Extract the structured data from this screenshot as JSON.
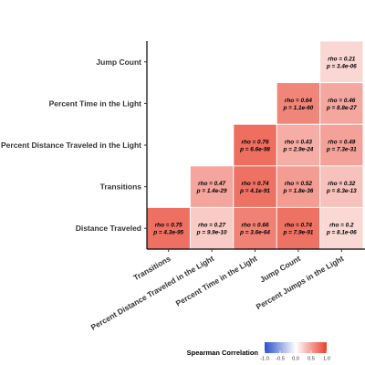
{
  "chart_data": {
    "type": "heatmap",
    "title": "",
    "xlabel": "",
    "ylabel": "",
    "x_categories": [
      "Transitions",
      "Percent Distance Traveled in the Light",
      "Percent Time in the Light",
      "Jump Count",
      "Percent Jumps in the Light"
    ],
    "y_categories": [
      "Distance Traveled",
      "Transitions",
      "Percent Distance Traveled in the Light",
      "Percent Time in the Light",
      "Jump Count"
    ],
    "cells": [
      {
        "x": "Transitions",
        "y": "Distance Traveled",
        "rho": 0.75,
        "rho_label": "rho = 0.75",
        "p_label": "p = 4.3e-95"
      },
      {
        "x": "Percent Distance Traveled in the Light",
        "y": "Distance Traveled",
        "rho": 0.27,
        "rho_label": "rho = 0.27",
        "p_label": "p = 9.9e-10"
      },
      {
        "x": "Percent Time in the Light",
        "y": "Distance Traveled",
        "rho": 0.66,
        "rho_label": "rho = 0.66",
        "p_label": "p = 3.6e-64"
      },
      {
        "x": "Jump Count",
        "y": "Distance Traveled",
        "rho": 0.74,
        "rho_label": "rho = 0.74",
        "p_label": "p = 7.9e-91"
      },
      {
        "x": "Percent Jumps in the Light",
        "y": "Distance Traveled",
        "rho": 0.2,
        "rho_label": "rho = 0.2",
        "p_label": "p = 8.1e-06"
      },
      {
        "x": "Percent Distance Traveled in the Light",
        "y": "Transitions",
        "rho": 0.47,
        "rho_label": "rho = 0.47",
        "p_label": "p = 1.4e-29"
      },
      {
        "x": "Percent Time in the Light",
        "y": "Transitions",
        "rho": 0.74,
        "rho_label": "rho = 0.74",
        "p_label": "p = 4.1e-91"
      },
      {
        "x": "Jump Count",
        "y": "Transitions",
        "rho": 0.52,
        "rho_label": "rho = 0.52",
        "p_label": "p = 1.8e-36"
      },
      {
        "x": "Percent Jumps in the Light",
        "y": "Transitions",
        "rho": 0.32,
        "rho_label": "rho = 0.32",
        "p_label": "p = 8.3e-13"
      },
      {
        "x": "Percent Time in the Light",
        "y": "Percent Distance Traveled in the Light",
        "rho": 0.76,
        "rho_label": "rho = 0.76",
        "p_label": "p = 6.6e-98"
      },
      {
        "x": "Jump Count",
        "y": "Percent Distance Traveled in the Light",
        "rho": 0.43,
        "rho_label": "rho = 0.43",
        "p_label": "p = 2.9e-24"
      },
      {
        "x": "Percent Jumps in the Light",
        "y": "Percent Distance Traveled in the Light",
        "rho": 0.49,
        "rho_label": "rho = 0.49",
        "p_label": "p = 7.3e-31"
      },
      {
        "x": "Jump Count",
        "y": "Percent Time in the Light",
        "rho": 0.64,
        "rho_label": "rho = 0.64",
        "p_label": "p = 1.1e-60"
      },
      {
        "x": "Percent Jumps in the Light",
        "y": "Percent Time in the Light",
        "rho": 0.46,
        "rho_label": "rho = 0.46",
        "p_label": "p = 8.8e-27"
      },
      {
        "x": "Percent Jumps in the Light",
        "y": "Jump Count",
        "rho": 0.21,
        "rho_label": "rho = 0.21",
        "p_label": "p = 3.4e-06"
      }
    ],
    "legend": {
      "title": "Spearman Correlation",
      "placement": "bottom",
      "ticks": [
        -1.0,
        -0.5,
        0.0,
        0.5,
        1.0
      ],
      "tick_labels": [
        "-1.0",
        "-0.5",
        "0.0",
        "0.5",
        "1.0"
      ],
      "range": [
        -1,
        1
      ],
      "low_color": "#2e4fcc",
      "mid_color": "#ffffff",
      "high_color": "#e8402e"
    },
    "grid": false
  }
}
